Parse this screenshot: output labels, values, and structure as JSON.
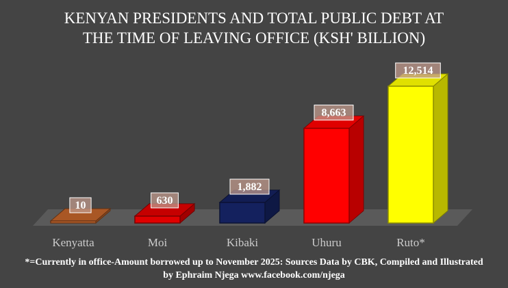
{
  "chart_data": {
    "type": "bar",
    "title_lines": [
      "KENYAN PRESIDENTS AND TOTAL PUBLIC DEBT AT",
      "THE TIME OF LEAVING OFFICE (KSH' BILLION)"
    ],
    "categories": [
      "Kenyatta",
      "Moi",
      "Kibaki",
      "Uhuru",
      "Ruto*"
    ],
    "values": [
      10,
      630,
      1882,
      8663,
      12514
    ],
    "data_labels": [
      "10",
      "630",
      "1,882",
      "8,663",
      "12,514"
    ],
    "colors": [
      "#c0632a",
      "#e00000",
      "#14215e",
      "#ff0000",
      "#ffff00"
    ],
    "ylim": [
      0,
      12514
    ]
  },
  "footnote_lines": [
    "*=Currently in office-Amount borrowed up to November 2025: Sources Data by CBK, Compiled and Illustrated",
    "by Ephraim Njega www.facebook.com/njega"
  ]
}
